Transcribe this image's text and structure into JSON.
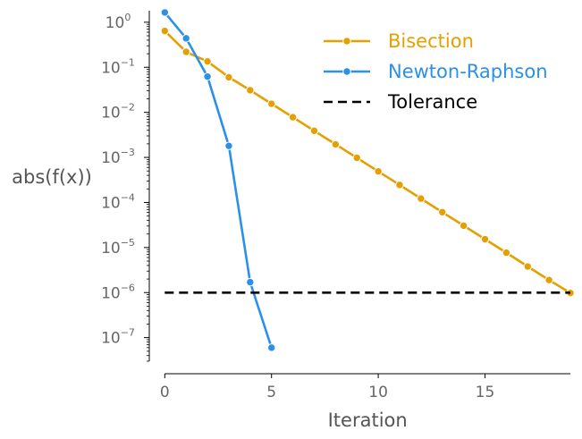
{
  "chart_data": {
    "type": "line",
    "xlabel": "Iteration",
    "ylabel": "abs(f(x))",
    "yscale": "log",
    "xlim": [
      -0.6,
      19
    ],
    "ylim": [
      3e-08,
      1.8
    ],
    "xticks": [
      0,
      5,
      10,
      15
    ],
    "xtick_labels": [
      "0",
      "5",
      "10",
      "15"
    ],
    "yticks": [
      1e-07,
      1e-06,
      1e-05,
      0.0001,
      0.001,
      0.01,
      0.1,
      1
    ],
    "ytick_labels": [
      {
        "base": "10",
        "exp": "−7"
      },
      {
        "base": "10",
        "exp": "−6"
      },
      {
        "base": "10",
        "exp": "−5"
      },
      {
        "base": "10",
        "exp": "−4"
      },
      {
        "base": "10",
        "exp": "−3"
      },
      {
        "base": "10",
        "exp": "−2"
      },
      {
        "base": "10",
        "exp": "−1"
      },
      {
        "base": "10",
        "exp": "0"
      }
    ],
    "grid": false,
    "legend_position": "top-right",
    "series": [
      {
        "name": "Bisection",
        "color": "#E69F00",
        "x": [
          0,
          1,
          2,
          3,
          4,
          5,
          6,
          7,
          8,
          9,
          10,
          11,
          12,
          13,
          14,
          15,
          16,
          17,
          18,
          19
        ],
        "y": [
          0.64,
          0.22,
          0.135,
          0.06,
          0.031,
          0.0155,
          0.0078,
          0.0039,
          0.00195,
          0.00098,
          0.00049,
          0.000245,
          0.000122,
          6.1e-05,
          3.05e-05,
          1.53e-05,
          7.7e-06,
          3.8e-06,
          1.9e-06,
          9.8e-07
        ],
        "line_style": "solid",
        "marker": "circle"
      },
      {
        "name": "Newton-Raphson",
        "color": "#2B90E8",
        "x": [
          0,
          1,
          2,
          3,
          4,
          5
        ],
        "y": [
          1.65,
          0.44,
          0.062,
          0.0018,
          1.7e-06,
          6e-08
        ],
        "line_style": "solid",
        "marker": "circle"
      },
      {
        "name": "Tolerance",
        "color": "#000000",
        "x": [
          0,
          19
        ],
        "y": [
          1e-06,
          1e-06
        ],
        "line_style": "dashed",
        "marker": "none"
      }
    ]
  }
}
